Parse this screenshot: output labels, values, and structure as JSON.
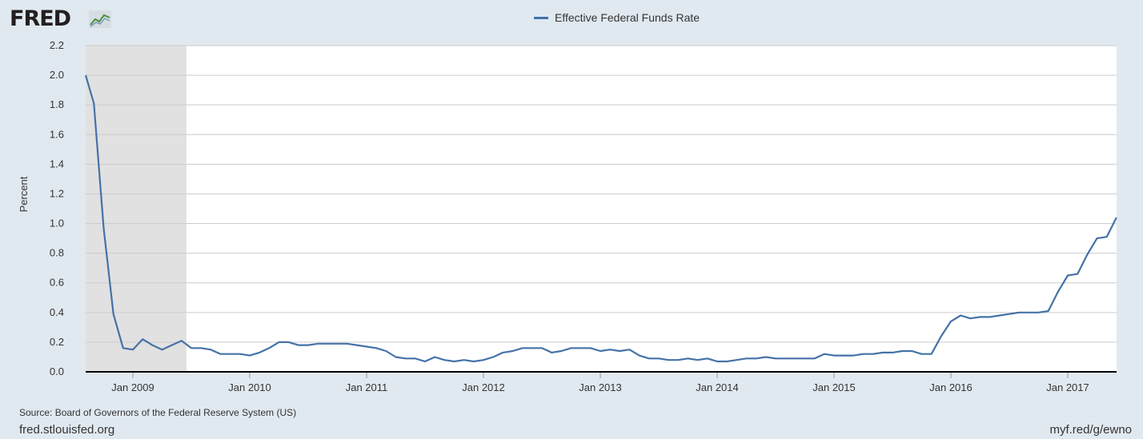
{
  "brand": {
    "logo_text": "FRED",
    "logo_icon": "fred-chart-icon"
  },
  "footer": {
    "source": "Source: Board of Governors of the Federal Reserve System (US)",
    "site": "fred.stlouisfed.org",
    "short_url": "myf.red/g/ewno"
  },
  "colors": {
    "line": "#4572a7",
    "recession": "#e1e1e1",
    "plot_bg": "#ffffff",
    "page_bg": "#e1e9f0",
    "grid": "#cccccc"
  },
  "chart_data": {
    "type": "line",
    "title": "",
    "ylabel": "Percent",
    "xlabel": "",
    "ylim": [
      0,
      2.2
    ],
    "yticks": [
      "0.0",
      "0.2",
      "0.4",
      "0.6",
      "0.8",
      "1.0",
      "1.2",
      "1.4",
      "1.6",
      "1.8",
      "2.0",
      "2.2"
    ],
    "xticks": [
      "Jan 2009",
      "Jan 2010",
      "Jan 2011",
      "Jan 2012",
      "Jan 2013",
      "Jan 2014",
      "Jan 2015",
      "Jan 2016",
      "Jan 2017"
    ],
    "grid": true,
    "legend": "top-center",
    "recession": {
      "start": "2008-08",
      "end": "2009-06"
    },
    "series": [
      {
        "name": "Effective Federal Funds Rate",
        "x": [
          "2008-08",
          "2008-09",
          "2008-10",
          "2008-11",
          "2008-12",
          "2009-01",
          "2009-02",
          "2009-03",
          "2009-04",
          "2009-05",
          "2009-06",
          "2009-07",
          "2009-08",
          "2009-09",
          "2009-10",
          "2009-11",
          "2009-12",
          "2010-01",
          "2010-02",
          "2010-03",
          "2010-04",
          "2010-05",
          "2010-06",
          "2010-07",
          "2010-08",
          "2010-09",
          "2010-10",
          "2010-11",
          "2010-12",
          "2011-01",
          "2011-02",
          "2011-03",
          "2011-04",
          "2011-05",
          "2011-06",
          "2011-07",
          "2011-08",
          "2011-09",
          "2011-10",
          "2011-11",
          "2011-12",
          "2012-01",
          "2012-02",
          "2012-03",
          "2012-04",
          "2012-05",
          "2012-06",
          "2012-07",
          "2012-08",
          "2012-09",
          "2012-10",
          "2012-11",
          "2012-12",
          "2013-01",
          "2013-02",
          "2013-03",
          "2013-04",
          "2013-05",
          "2013-06",
          "2013-07",
          "2013-08",
          "2013-09",
          "2013-10",
          "2013-11",
          "2013-12",
          "2014-01",
          "2014-02",
          "2014-03",
          "2014-04",
          "2014-05",
          "2014-06",
          "2014-07",
          "2014-08",
          "2014-09",
          "2014-10",
          "2014-11",
          "2014-12",
          "2015-01",
          "2015-02",
          "2015-03",
          "2015-04",
          "2015-05",
          "2015-06",
          "2015-07",
          "2015-08",
          "2015-09",
          "2015-10",
          "2015-11",
          "2015-12",
          "2016-01",
          "2016-02",
          "2016-03",
          "2016-04",
          "2016-05",
          "2016-06",
          "2016-07",
          "2016-08",
          "2016-09",
          "2016-10",
          "2016-11",
          "2016-12",
          "2017-01",
          "2017-02",
          "2017-03",
          "2017-04",
          "2017-05",
          "2017-06"
        ],
        "values": [
          2.0,
          1.81,
          0.97,
          0.39,
          0.16,
          0.15,
          0.22,
          0.18,
          0.15,
          0.18,
          0.21,
          0.16,
          0.16,
          0.15,
          0.12,
          0.12,
          0.12,
          0.11,
          0.13,
          0.16,
          0.2,
          0.2,
          0.18,
          0.18,
          0.19,
          0.19,
          0.19,
          0.19,
          0.18,
          0.17,
          0.16,
          0.14,
          0.1,
          0.09,
          0.09,
          0.07,
          0.1,
          0.08,
          0.07,
          0.08,
          0.07,
          0.08,
          0.1,
          0.13,
          0.14,
          0.16,
          0.16,
          0.16,
          0.13,
          0.14,
          0.16,
          0.16,
          0.16,
          0.14,
          0.15,
          0.14,
          0.15,
          0.11,
          0.09,
          0.09,
          0.08,
          0.08,
          0.09,
          0.08,
          0.09,
          0.07,
          0.07,
          0.08,
          0.09,
          0.09,
          0.1,
          0.09,
          0.09,
          0.09,
          0.09,
          0.09,
          0.12,
          0.11,
          0.11,
          0.11,
          0.12,
          0.12,
          0.13,
          0.13,
          0.14,
          0.14,
          0.12,
          0.12,
          0.24,
          0.34,
          0.38,
          0.36,
          0.37,
          0.37,
          0.38,
          0.39,
          0.4,
          0.4,
          0.4,
          0.41,
          0.54,
          0.65,
          0.66,
          0.79,
          0.9,
          0.91,
          1.04
        ]
      }
    ]
  }
}
